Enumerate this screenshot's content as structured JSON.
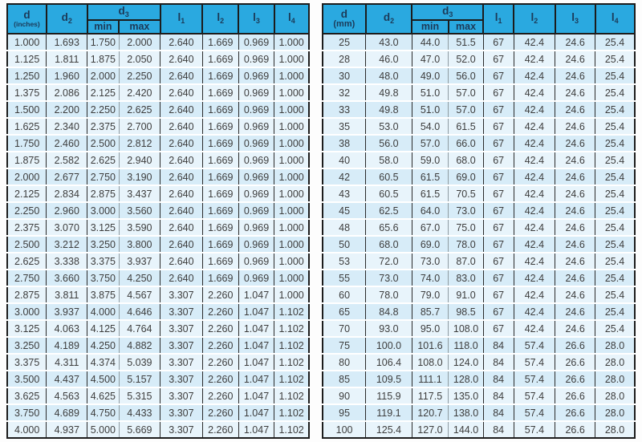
{
  "colors": {
    "header_bg": "#2aa9e0",
    "header_text": "#1c3a58",
    "row_odd": "#d7ecf8",
    "row_even": "#e8f4fb",
    "body_text": "#3d3d3d",
    "grid_line": "#1c1c1c"
  },
  "tables": [
    {
      "id": "inches",
      "columns": {
        "d": {
          "line1": "d",
          "line2": "(inches)"
        },
        "d2": {
          "base": "d",
          "sub": "2"
        },
        "d3": {
          "base": "d",
          "sub": "3",
          "min": "min",
          "max": "max"
        },
        "l1": {
          "base": "l",
          "sub": "1"
        },
        "l2": {
          "base": "l",
          "sub": "2"
        },
        "l3": {
          "base": "l",
          "sub": "3"
        },
        "l4": {
          "base": "l",
          "sub": "4"
        }
      },
      "rows": [
        [
          "1.000",
          "1.693",
          "1.750",
          "2.000",
          "2.640",
          "1.669",
          "0.969",
          "1.000"
        ],
        [
          "1.125",
          "1.811",
          "1.875",
          "2.050",
          "2.640",
          "1.669",
          "0.969",
          "1.000"
        ],
        [
          "1.250",
          "1.960",
          "2.000",
          "2.250",
          "2.640",
          "1.669",
          "0.969",
          "1.000"
        ],
        [
          "1.375",
          "2.086",
          "2.125",
          "2.420",
          "2.640",
          "1.669",
          "0.969",
          "1.000"
        ],
        [
          "1.500",
          "2.200",
          "2.250",
          "2.625",
          "2.640",
          "1.669",
          "0.969",
          "1.000"
        ],
        [
          "1.625",
          "2.340",
          "2.375",
          "2.700",
          "2.640",
          "1.669",
          "0.969",
          "1.000"
        ],
        [
          "1.750",
          "2.460",
          "2.500",
          "2.812",
          "2.640",
          "1.669",
          "0.969",
          "1.000"
        ],
        [
          "1.875",
          "2.582",
          "2.625",
          "2.940",
          "2.640",
          "1.669",
          "0.969",
          "1.000"
        ],
        [
          "2.000",
          "2.677",
          "2.750",
          "3.190",
          "2.640",
          "1.669",
          "0.969",
          "1.000"
        ],
        [
          "2.125",
          "2.834",
          "2.875",
          "3.437",
          "2.640",
          "1.669",
          "0.969",
          "1.000"
        ],
        [
          "2.250",
          "2.960",
          "3.000",
          "3.560",
          "2.640",
          "1.669",
          "0.969",
          "1.000"
        ],
        [
          "2.375",
          "3.070",
          "3.125",
          "3.590",
          "2.640",
          "1.669",
          "0.969",
          "1.000"
        ],
        [
          "2.500",
          "3.212",
          "3.250",
          "3.800",
          "2.640",
          "1.669",
          "0.969",
          "1.000"
        ],
        [
          "2.625",
          "3.338",
          "3.375",
          "3.937",
          "2.640",
          "1.669",
          "0.969",
          "1.000"
        ],
        [
          "2.750",
          "3.660",
          "3.750",
          "4.250",
          "2.640",
          "1.669",
          "0.969",
          "1.000"
        ],
        [
          "2.875",
          "3.811",
          "3.875",
          "4.567",
          "3.307",
          "2.260",
          "1.047",
          "1.000"
        ],
        [
          "3.000",
          "3.937",
          "4.000",
          "4.646",
          "3.307",
          "2.260",
          "1.047",
          "1.102"
        ],
        [
          "3.125",
          "4.063",
          "4.125",
          "4.764",
          "3.307",
          "2.260",
          "1.047",
          "1.102"
        ],
        [
          "3.250",
          "4.189",
          "4.250",
          "4.882",
          "3.307",
          "2.260",
          "1.047",
          "1.102"
        ],
        [
          "3.375",
          "4.311",
          "4.374",
          "5.039",
          "3.307",
          "2.260",
          "1.047",
          "1.102"
        ],
        [
          "3.500",
          "4.437",
          "4.500",
          "5.157",
          "3.307",
          "2.260",
          "1.047",
          "1.102"
        ],
        [
          "3.625",
          "4.563",
          "4.625",
          "5.315",
          "3.307",
          "2.260",
          "1.047",
          "1.102"
        ],
        [
          "3.750",
          "4.689",
          "4.750",
          "4.433",
          "3.307",
          "2.260",
          "1.047",
          "1.102"
        ],
        [
          "4.000",
          "4.937",
          "5.000",
          "5.669",
          "3.307",
          "2.260",
          "1.047",
          "1.102"
        ]
      ]
    },
    {
      "id": "mm",
      "columns": {
        "d": {
          "line1": "d",
          "line2": "(mm)"
        },
        "d2": {
          "base": "d",
          "sub": "2"
        },
        "d3": {
          "base": "d",
          "sub": "3",
          "min": "min",
          "max": "max"
        },
        "l1": {
          "base": "l",
          "sub": "1"
        },
        "l2": {
          "base": "l",
          "sub": "2"
        },
        "l3": {
          "base": "l",
          "sub": "3"
        },
        "l4": {
          "base": "l",
          "sub": "4"
        }
      },
      "rows": [
        [
          "25",
          "43.0",
          "44.0",
          "51.5",
          "67",
          "42.4",
          "24.6",
          "25.4"
        ],
        [
          "28",
          "46.0",
          "47.0",
          "52.0",
          "67",
          "42.4",
          "24.6",
          "25.4"
        ],
        [
          "30",
          "48.0",
          "49.0",
          "56.0",
          "67",
          "42.4",
          "24.6",
          "25.4"
        ],
        [
          "32",
          "49.8",
          "51.0",
          "57.0",
          "67",
          "42.4",
          "24.6",
          "25.4"
        ],
        [
          "33",
          "49.8",
          "51.0",
          "57.0",
          "67",
          "42.4",
          "24.6",
          "25.4"
        ],
        [
          "35",
          "53.0",
          "54.0",
          "61.5",
          "67",
          "42.4",
          "24.6",
          "25.4"
        ],
        [
          "38",
          "56.0",
          "57.0",
          "66.0",
          "67",
          "42.4",
          "24.6",
          "25.4"
        ],
        [
          "40",
          "58.0",
          "59.0",
          "68.0",
          "67",
          "42.4",
          "24.6",
          "25.4"
        ],
        [
          "42",
          "60.5",
          "61.5",
          "69.0",
          "67",
          "42.4",
          "24.6",
          "25.4"
        ],
        [
          "43",
          "60.5",
          "61.5",
          "70.5",
          "67",
          "42.4",
          "24.6",
          "25.4"
        ],
        [
          "45",
          "62.5",
          "64.0",
          "73.0",
          "67",
          "42.4",
          "24.6",
          "25.4"
        ],
        [
          "48",
          "65.6",
          "67.0",
          "75.0",
          "67",
          "42.4",
          "24.6",
          "25.4"
        ],
        [
          "50",
          "68.0",
          "69.0",
          "78.0",
          "67",
          "42.4",
          "24.6",
          "25.4"
        ],
        [
          "53",
          "72.0",
          "73.0",
          "87.0",
          "67",
          "42.4",
          "24.6",
          "25.4"
        ],
        [
          "55",
          "73.0",
          "74.0",
          "83.0",
          "67",
          "42.4",
          "24.6",
          "25.4"
        ],
        [
          "60",
          "78.0",
          "79.0",
          "91.0",
          "67",
          "42.4",
          "24.6",
          "25.4"
        ],
        [
          "65",
          "84.8",
          "85.7",
          "98.5",
          "67",
          "42.4",
          "24.6",
          "25.4"
        ],
        [
          "70",
          "93.0",
          "95.0",
          "108.0",
          "67",
          "42.4",
          "24.6",
          "25.4"
        ],
        [
          "75",
          "100.0",
          "101.6",
          "118.0",
          "84",
          "57.4",
          "26.6",
          "28.0"
        ],
        [
          "80",
          "106.4",
          "108.0",
          "124.0",
          "84",
          "57.4",
          "26.6",
          "28.0"
        ],
        [
          "85",
          "109.5",
          "111.1",
          "128.0",
          "84",
          "57.4",
          "26.6",
          "28.0"
        ],
        [
          "90",
          "115.9",
          "117.5",
          "135.0",
          "84",
          "57.4",
          "26.6",
          "28.0"
        ],
        [
          "95",
          "119.1",
          "120.7",
          "138.0",
          "84",
          "57.4",
          "26.6",
          "28.0"
        ],
        [
          "100",
          "125.4",
          "127.0",
          "144.0",
          "84",
          "57.4",
          "26.6",
          "28.0"
        ]
      ]
    }
  ]
}
